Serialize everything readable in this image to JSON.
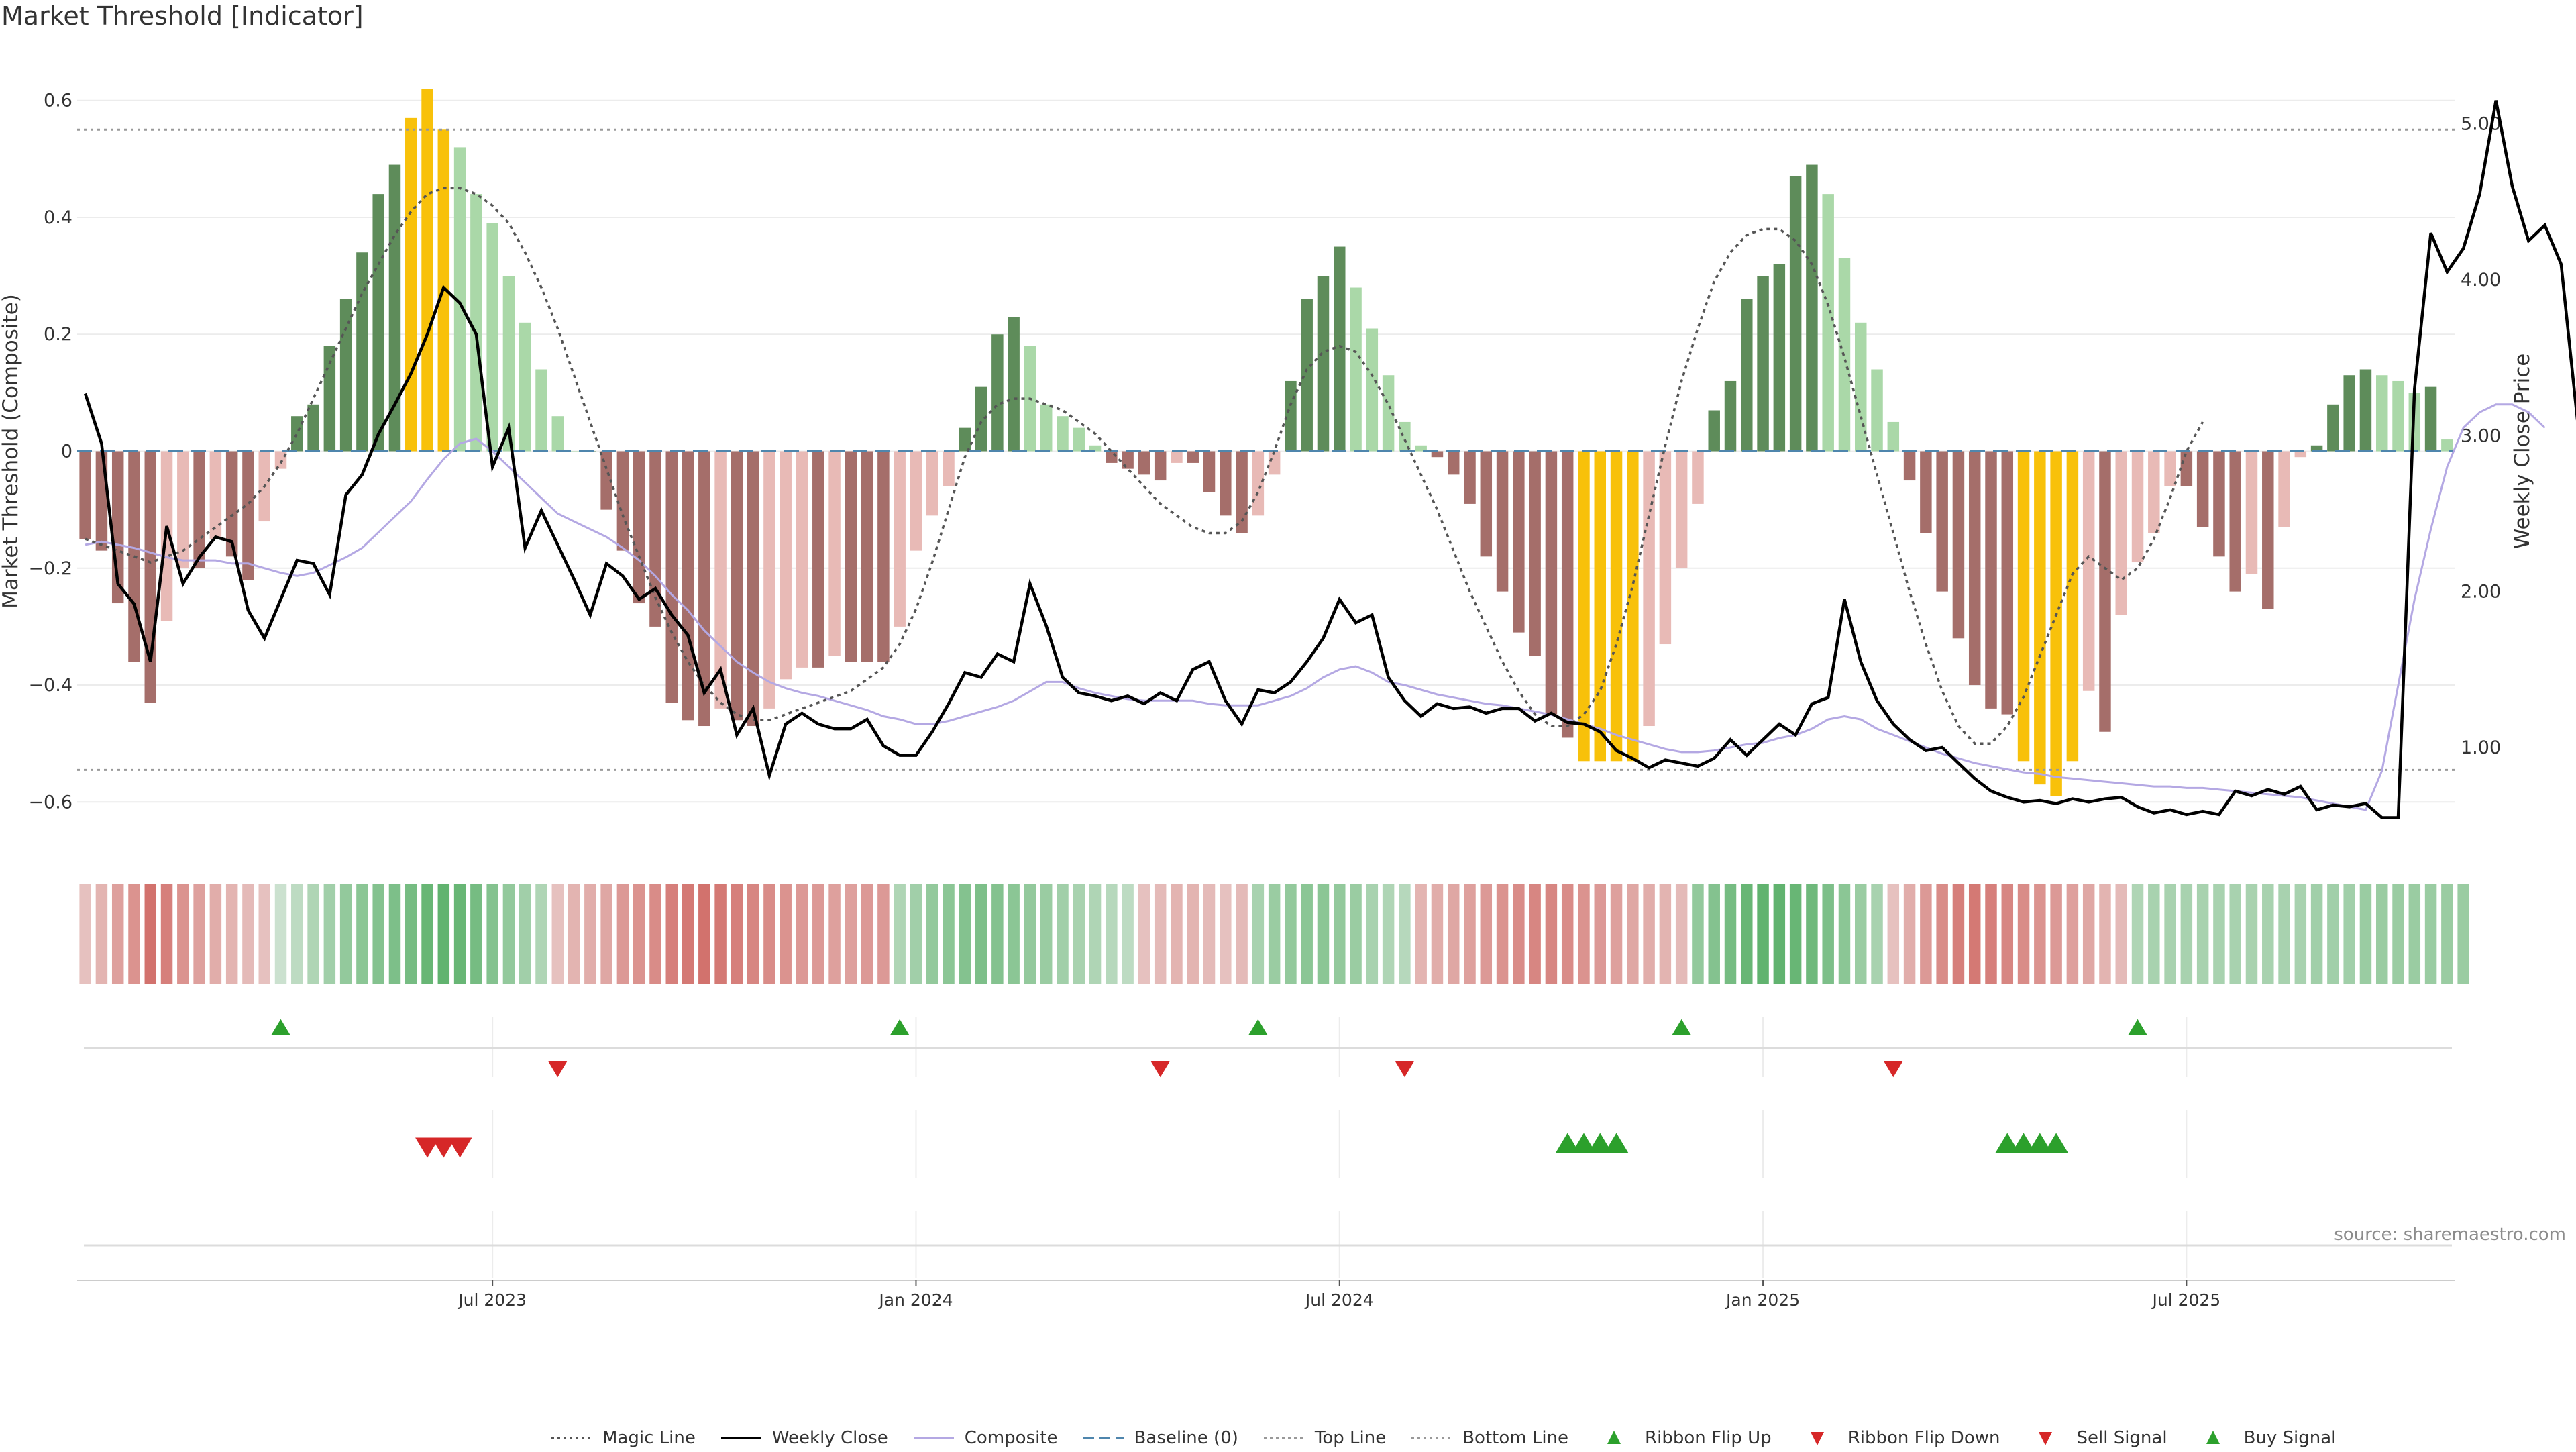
{
  "title": "Market Threshold [Indicator]",
  "source": "source: sharemaestro.com",
  "colors": {
    "magic": "#555555",
    "close": "#000000",
    "composite": "#b4a8e3",
    "baseline": "#4f86ad",
    "threshold": "#999999",
    "bar_strong_pos": "#5e8c5a",
    "bar_weak_pos": "#aad8a8",
    "bar_strong_neg": "#a56e6a",
    "bar_weak_neg": "#e8bab6",
    "bar_extreme": "#f8c10a",
    "flip_up": "#2ca02c",
    "flip_down": "#d62728"
  },
  "legend": [
    {
      "key": "magic",
      "label": "Magic Line",
      "symbol": "dotted-line"
    },
    {
      "key": "close",
      "label": "Weekly Close",
      "symbol": "solid-line"
    },
    {
      "key": "composite",
      "label": "Composite",
      "symbol": "solid-thin-line"
    },
    {
      "key": "baseline",
      "label": "Baseline (0)",
      "symbol": "dashed-line"
    },
    {
      "key": "top",
      "label": "Top Line",
      "symbol": "dotted-line"
    },
    {
      "key": "bottom",
      "label": "Bottom Line",
      "symbol": "dotted-line"
    },
    {
      "key": "flip_up",
      "label": "Ribbon Flip Up",
      "symbol": "triangle-up"
    },
    {
      "key": "flip_down",
      "label": "Ribbon Flip Down",
      "symbol": "triangle-down"
    },
    {
      "key": "sell",
      "label": "Sell Signal",
      "symbol": "triangle-down"
    },
    {
      "key": "buy",
      "label": "Buy Signal",
      "symbol": "triangle-up"
    }
  ],
  "chart_data": {
    "type": "bar",
    "title": "Market Threshold [Indicator]",
    "ylabel": "Market Threshold (Composite)",
    "y2label": "Weekly Close Price",
    "ylim": [
      -0.68,
      0.68
    ],
    "y2lim": [
      0.35,
      5.45
    ],
    "yticks": [
      0.6,
      0.4,
      0.2,
      0,
      -0.2,
      -0.4,
      -0.6
    ],
    "ytick_labels": [
      "0.6",
      "0.4",
      "0.2",
      "0",
      "−0.2",
      "−0.4",
      "−0.6"
    ],
    "y2ticks": [
      5.0,
      4.0,
      3.0,
      2.0,
      1.0
    ],
    "y2tick_labels": [
      "5.00",
      "4.00",
      "3.00",
      "2.00",
      "1.00"
    ],
    "xticks": [
      {
        "week": 25,
        "label": "Jul 2023"
      },
      {
        "week": 51,
        "label": "Jan 2024"
      },
      {
        "week": 77,
        "label": "Jul 2024"
      },
      {
        "week": 103,
        "label": "Jan 2025"
      },
      {
        "week": 129,
        "label": "Jul 2025"
      }
    ],
    "top_line": 0.55,
    "bottom_line": -0.545,
    "baseline": 0,
    "composite_bars": [
      -0.15,
      -0.17,
      -0.26,
      -0.36,
      -0.43,
      -0.29,
      -0.2,
      -0.2,
      -0.15,
      -0.18,
      -0.22,
      -0.12,
      -0.03,
      0.06,
      0.08,
      0.18,
      0.26,
      0.34,
      0.44,
      0.49,
      0.57,
      0.62,
      0.55,
      0.52,
      0.44,
      0.39,
      0.3,
      0.22,
      0.14,
      0.06,
      0,
      0,
      -0.1,
      -0.17,
      -0.26,
      -0.3,
      -0.43,
      -0.46,
      -0.47,
      -0.44,
      -0.46,
      -0.47,
      -0.44,
      -0.39,
      -0.37,
      -0.37,
      -0.35,
      -0.36,
      -0.36,
      -0.36,
      -0.3,
      -0.17,
      -0.11,
      -0.06,
      0.04,
      0.11,
      0.2,
      0.23,
      0.18,
      0.08,
      0.06,
      0.04,
      0.01,
      -0.02,
      -0.03,
      -0.04,
      -0.05,
      -0.02,
      -0.02,
      -0.07,
      -0.11,
      -0.14,
      -0.11,
      -0.04,
      0.12,
      0.26,
      0.3,
      0.35,
      0.28,
      0.21,
      0.13,
      0.05,
      0.01,
      -0.01,
      -0.04,
      -0.09,
      -0.18,
      -0.24,
      -0.31,
      -0.35,
      -0.45,
      -0.49,
      -0.53,
      -0.53,
      -0.53,
      -0.53,
      -0.47,
      -0.33,
      -0.2,
      -0.09,
      0.07,
      0.12,
      0.26,
      0.3,
      0.32,
      0.47,
      0.49,
      0.44,
      0.33,
      0.22,
      0.14,
      0.05,
      -0.05,
      -0.14,
      -0.24,
      -0.32,
      -0.4,
      -0.44,
      -0.45,
      -0.53,
      -0.57,
      -0.59,
      -0.53,
      -0.41,
      -0.48,
      -0.28,
      -0.19,
      -0.14,
      -0.06,
      -0.06,
      -0.13,
      -0.18,
      -0.24,
      -0.21,
      -0.27,
      -0.13,
      -0.01,
      0.01,
      0.08,
      0.13,
      0.14,
      0.13,
      0.12,
      0.1,
      0.11,
      0.02
    ],
    "weekly_close": [
      3.27,
      2.95,
      2.05,
      1.92,
      1.55,
      2.42,
      2.05,
      2.22,
      2.35,
      2.32,
      1.88,
      1.7,
      1.95,
      2.2,
      2.18,
      1.98,
      2.62,
      2.75,
      3.01,
      3.2,
      3.4,
      3.65,
      3.95,
      3.85,
      3.65,
      2.8,
      3.05,
      2.28,
      2.52,
      2.3,
      2.08,
      1.85,
      2.18,
      2.1,
      1.95,
      2.02,
      1.85,
      1.72,
      1.35,
      1.5,
      1.08,
      1.25,
      0.82,
      1.15,
      1.22,
      1.15,
      1.12,
      1.12,
      1.18,
      1.01,
      0.95,
      0.95,
      1.1,
      1.28,
      1.48,
      1.45,
      1.6,
      1.55,
      2.05,
      1.78,
      1.45,
      1.35,
      1.33,
      1.3,
      1.33,
      1.28,
      1.35,
      1.3,
      1.5,
      1.55,
      1.3,
      1.15,
      1.37,
      1.35,
      1.42,
      1.55,
      1.7,
      1.95,
      1.8,
      1.85,
      1.45,
      1.3,
      1.2,
      1.28,
      1.25,
      1.26,
      1.22,
      1.25,
      1.25,
      1.17,
      1.22,
      1.16,
      1.15,
      1.1,
      0.98,
      0.93,
      0.87,
      0.92,
      0.9,
      0.88,
      0.93,
      1.05,
      0.95,
      1.05,
      1.15,
      1.08,
      1.28,
      1.32,
      1.95,
      1.55,
      1.3,
      1.15,
      1.05,
      0.98,
      1.0,
      0.9,
      0.8,
      0.72,
      0.68,
      0.65,
      0.66,
      0.64,
      0.67,
      0.65,
      0.67,
      0.68,
      0.62,
      0.58,
      0.6,
      0.57,
      0.59,
      0.57,
      0.72,
      0.69,
      0.73,
      0.7,
      0.75,
      0.6,
      0.63,
      0.62,
      0.64,
      0.55,
      0.55,
      3.3,
      4.3,
      4.05,
      4.2,
      4.55,
      5.15,
      4.6,
      4.25,
      4.35,
      4.1,
      3.1
    ],
    "composite_line": [
      2.3,
      2.32,
      2.3,
      2.28,
      2.25,
      2.22,
      2.2,
      2.2,
      2.2,
      2.18,
      2.18,
      2.15,
      2.12,
      2.1,
      2.12,
      2.17,
      2.22,
      2.28,
      2.38,
      2.48,
      2.58,
      2.72,
      2.85,
      2.95,
      2.98,
      2.9,
      2.8,
      2.7,
      2.6,
      2.5,
      2.45,
      2.4,
      2.35,
      2.28,
      2.2,
      2.1,
      1.98,
      1.88,
      1.75,
      1.65,
      1.55,
      1.48,
      1.42,
      1.38,
      1.35,
      1.33,
      1.3,
      1.27,
      1.24,
      1.2,
      1.18,
      1.15,
      1.15,
      1.17,
      1.2,
      1.23,
      1.26,
      1.3,
      1.36,
      1.42,
      1.42,
      1.38,
      1.35,
      1.33,
      1.31,
      1.3,
      1.3,
      1.3,
      1.3,
      1.28,
      1.27,
      1.27,
      1.27,
      1.3,
      1.33,
      1.38,
      1.45,
      1.5,
      1.52,
      1.48,
      1.42,
      1.4,
      1.37,
      1.34,
      1.32,
      1.3,
      1.28,
      1.27,
      1.25,
      1.23,
      1.21,
      1.18,
      1.15,
      1.12,
      1.08,
      1.05,
      1.02,
      0.99,
      0.97,
      0.97,
      0.98,
      1.0,
      1.02,
      1.03,
      1.06,
      1.08,
      1.12,
      1.18,
      1.2,
      1.18,
      1.12,
      1.08,
      1.04,
      1.0,
      0.96,
      0.93,
      0.9,
      0.88,
      0.86,
      0.84,
      0.83,
      0.81,
      0.8,
      0.79,
      0.78,
      0.77,
      0.76,
      0.75,
      0.75,
      0.74,
      0.74,
      0.73,
      0.72,
      0.71,
      0.7,
      0.69,
      0.68,
      0.66,
      0.64,
      0.62,
      0.6,
      0.85,
      1.4,
      1.95,
      2.4,
      2.8,
      3.05,
      3.15,
      3.2,
      3.2,
      3.15,
      3.05
    ],
    "magic_line": [
      -0.15,
      -0.16,
      -0.17,
      -0.18,
      -0.19,
      -0.18,
      -0.17,
      -0.15,
      -0.13,
      -0.11,
      -0.09,
      -0.06,
      -0.02,
      0.03,
      0.09,
      0.15,
      0.21,
      0.27,
      0.32,
      0.37,
      0.41,
      0.44,
      0.45,
      0.45,
      0.44,
      0.42,
      0.39,
      0.34,
      0.28,
      0.21,
      0.13,
      0.05,
      -0.03,
      -0.11,
      -0.18,
      -0.25,
      -0.31,
      -0.36,
      -0.4,
      -0.43,
      -0.45,
      -0.46,
      -0.46,
      -0.45,
      -0.44,
      -0.43,
      -0.42,
      -0.41,
      -0.39,
      -0.37,
      -0.33,
      -0.27,
      -0.19,
      -0.1,
      -0.01,
      0.05,
      0.08,
      0.09,
      0.09,
      0.08,
      0.07,
      0.05,
      0.03,
      0.0,
      -0.03,
      -0.06,
      -0.09,
      -0.11,
      -0.13,
      -0.14,
      -0.14,
      -0.12,
      -0.07,
      0.0,
      0.08,
      0.14,
      0.17,
      0.18,
      0.17,
      0.13,
      0.08,
      0.02,
      -0.04,
      -0.1,
      -0.17,
      -0.24,
      -0.3,
      -0.36,
      -0.41,
      -0.45,
      -0.47,
      -0.47,
      -0.45,
      -0.41,
      -0.33,
      -0.23,
      -0.11,
      0.01,
      0.12,
      0.21,
      0.29,
      0.34,
      0.37,
      0.38,
      0.38,
      0.36,
      0.32,
      0.25,
      0.16,
      0.06,
      -0.04,
      -0.14,
      -0.24,
      -0.33,
      -0.41,
      -0.47,
      -0.5,
      -0.5,
      -0.47,
      -0.42,
      -0.35,
      -0.28,
      -0.21,
      -0.18,
      -0.2,
      -0.22,
      -0.2,
      -0.15,
      -0.08,
      0.0,
      0.05
    ],
    "ribbon": [
      -0.2,
      -0.3,
      -0.45,
      -0.55,
      -0.8,
      -0.7,
      -0.55,
      -0.45,
      -0.35,
      -0.3,
      -0.25,
      -0.2,
      0.1,
      0.2,
      0.3,
      0.4,
      0.5,
      0.55,
      0.6,
      0.65,
      0.7,
      0.8,
      0.85,
      0.8,
      0.7,
      0.6,
      0.5,
      0.4,
      0.3,
      -0.2,
      -0.3,
      -0.35,
      -0.4,
      -0.5,
      -0.55,
      -0.6,
      -0.7,
      -0.75,
      -0.8,
      -0.75,
      -0.7,
      -0.65,
      -0.6,
      -0.55,
      -0.5,
      -0.5,
      -0.45,
      -0.45,
      -0.5,
      -0.5,
      0.3,
      0.4,
      0.5,
      0.55,
      0.6,
      0.65,
      0.6,
      0.55,
      0.5,
      0.45,
      0.4,
      0.35,
      0.3,
      0.25,
      0.2,
      -0.2,
      -0.25,
      -0.3,
      -0.3,
      -0.25,
      -0.2,
      -0.25,
      0.35,
      0.45,
      0.5,
      0.55,
      0.55,
      0.5,
      0.45,
      0.35,
      0.3,
      0.25,
      -0.3,
      -0.35,
      -0.4,
      -0.45,
      -0.5,
      -0.55,
      -0.6,
      -0.65,
      -0.65,
      -0.6,
      -0.55,
      -0.5,
      -0.45,
      -0.4,
      -0.35,
      -0.3,
      -0.25,
      0.5,
      0.6,
      0.7,
      0.8,
      0.85,
      0.85,
      0.8,
      0.75,
      0.65,
      0.55,
      0.45,
      0.35,
      -0.2,
      -0.35,
      -0.5,
      -0.6,
      -0.7,
      -0.75,
      -0.7,
      -0.65,
      -0.6,
      -0.55,
      -0.5,
      -0.45,
      -0.4,
      -0.3,
      -0.25,
      0.3,
      0.35,
      0.35,
      0.35,
      0.35,
      0.35,
      0.35,
      0.35,
      0.35,
      0.35,
      0.35,
      0.4,
      0.4,
      0.4,
      0.45,
      0.45,
      0.45,
      0.45,
      0.45,
      0.45,
      0.45
    ],
    "ribbon_flip_up_weeks": [
      12,
      50,
      72,
      98,
      126
    ],
    "ribbon_flip_down_weeks": [
      29,
      66,
      81,
      111
    ],
    "sell_signal_weeks": [
      21,
      22,
      23
    ],
    "buy_signal_weeks": [
      91,
      92,
      93,
      94,
      118,
      119,
      120,
      121
    ]
  }
}
